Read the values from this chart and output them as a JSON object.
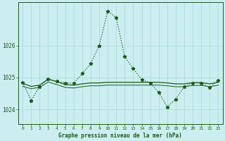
{
  "title": "Graphe pression niveau de la mer (hPa)",
  "background_color": "#cceef0",
  "grid_color": "#aadddf",
  "line_color": "#1a5c1a",
  "xlim": [
    -0.5,
    23.5
  ],
  "ylim": [
    1023.55,
    1027.35
  ],
  "yticks": [
    1024,
    1025,
    1026
  ],
  "xticks": [
    0,
    1,
    2,
    3,
    4,
    5,
    6,
    7,
    8,
    9,
    10,
    11,
    12,
    13,
    14,
    15,
    16,
    17,
    18,
    19,
    20,
    21,
    22,
    23
  ],
  "series_dotted": [
    1024.85,
    1024.28,
    1024.72,
    1024.95,
    1024.88,
    1024.83,
    1024.82,
    1025.12,
    1025.43,
    1026.0,
    1027.08,
    1026.88,
    1025.65,
    1025.28,
    1024.93,
    1024.83,
    1024.53,
    1024.08,
    1024.32,
    1024.72,
    1024.83,
    1024.83,
    1024.68,
    1024.92
  ],
  "series_solid_upper": [
    1024.82,
    1024.72,
    1024.76,
    1024.95,
    1024.87,
    1024.78,
    1024.76,
    1024.8,
    1024.83,
    1024.83,
    1024.85,
    1024.85,
    1024.85,
    1024.85,
    1024.85,
    1024.85,
    1024.85,
    1024.83,
    1024.8,
    1024.8,
    1024.84,
    1024.84,
    1024.8,
    1024.85
  ],
  "series_solid_lower": [
    1024.72,
    1024.65,
    1024.69,
    1024.86,
    1024.78,
    1024.69,
    1024.67,
    1024.71,
    1024.74,
    1024.74,
    1024.76,
    1024.76,
    1024.76,
    1024.76,
    1024.76,
    1024.76,
    1024.76,
    1024.74,
    1024.71,
    1024.71,
    1024.75,
    1024.75,
    1024.71,
    1024.76
  ]
}
